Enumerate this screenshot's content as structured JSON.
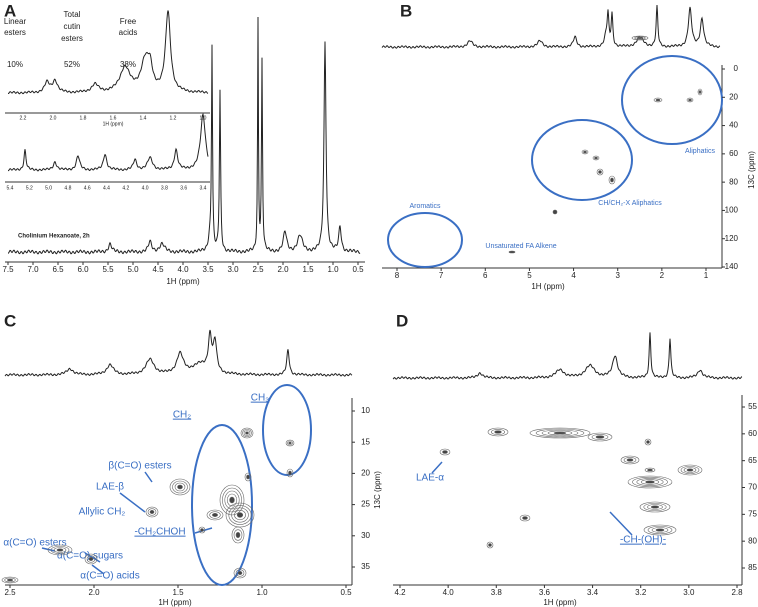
{
  "panels": [
    {
      "label": "A",
      "x_axis_title": "1H (ppm)",
      "xticks": [
        "7.5",
        "7.0",
        "6.5",
        "6.0",
        "5.5",
        "5.0",
        "4.5",
        "4.0",
        "3.5",
        "3.0",
        "2.5",
        "2.0",
        "1.5",
        "1.0",
        "0.5"
      ],
      "inset_headers": [
        [
          "Linear",
          "esters"
        ],
        [
          "Total",
          "cutin",
          "esters"
        ],
        [
          "Free",
          "acids"
        ]
      ],
      "inset_percents": [
        "10%",
        "52%",
        "38%"
      ],
      "inset1": {
        "axis_title": "1H (ppm)",
        "xticks": [
          "2.2",
          "2.0",
          "1.8",
          "1.6",
          "1.4",
          "1.2",
          "1.0"
        ]
      },
      "inset2": {
        "xticks": [
          "5.4",
          "5.2",
          "5.0",
          "4.8",
          "4.6",
          "4.4",
          "4.2",
          "4.0",
          "3.8",
          "3.6",
          "3.4"
        ]
      },
      "sample_label": "Cholinium Hexanoate, 2h"
    },
    {
      "label": "B",
      "x_axis_title": "1H (ppm)",
      "y_axis_title": "13C (ppm)",
      "xticks": [
        "8",
        "7",
        "6",
        "5",
        "4",
        "3",
        "2",
        "1"
      ],
      "yticks": [
        "0",
        "20",
        "40",
        "60",
        "80",
        "100",
        "120",
        "140"
      ],
      "regions": [
        "Aromatics",
        "CH/CH₂-X Aliphatics",
        "Aliphatics",
        "Unsaturated FA Alkene"
      ]
    },
    {
      "label": "C",
      "x_axis_title": "1H (ppm)",
      "y_axis_title": "13C (ppm)",
      "xticks": [
        "2.5",
        "2.0",
        "1.5",
        "1.0",
        "0.5"
      ],
      "yticks": [
        "10",
        "15",
        "20",
        "25",
        "30",
        "35"
      ],
      "annotations": [
        "CH₂",
        "CH₃",
        "β(C=O) esters",
        "LAE-β",
        "Allylic CH₂",
        "-CH₂CHOH",
        "α(C=O) esters",
        "α(C=O) sugars",
        "α(C=O) acids"
      ]
    },
    {
      "label": "D",
      "x_axis_title": "1H (ppm)",
      "xticks": [
        "4.2",
        "4.0",
        "3.8",
        "3.6",
        "3.4",
        "3.2",
        "3.0",
        "2.8"
      ],
      "yticks": [
        "55",
        "60",
        "65",
        "70",
        "75",
        "80",
        "85"
      ],
      "annotations": [
        "LAE-α",
        "-CH-(OH)-"
      ]
    }
  ]
}
